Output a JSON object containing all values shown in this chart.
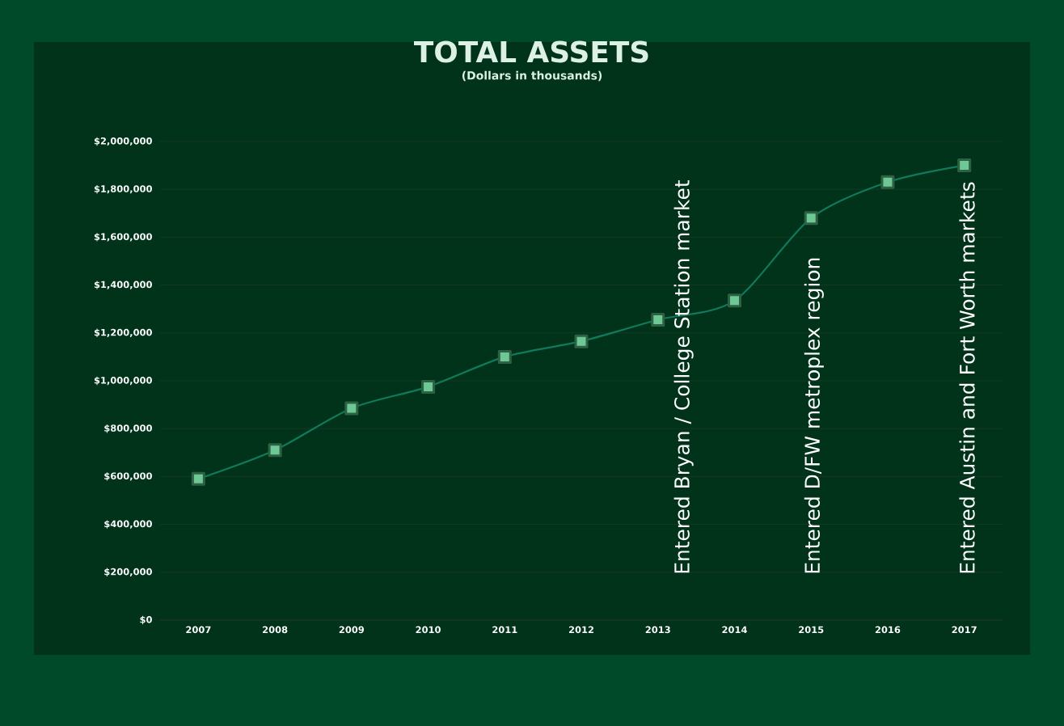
{
  "chart_data": {
    "type": "line",
    "title": "TOTAL ASSETS",
    "subtitle": "(Dollars in thousands)",
    "categories": [
      "2007",
      "2008",
      "2009",
      "2010",
      "2011",
      "2012",
      "2013",
      "2014",
      "2015",
      "2016",
      "2017"
    ],
    "series": [
      {
        "color": "#0f7a5c",
        "values": [
          590000,
          710000,
          885000,
          975000,
          1100000,
          1165000,
          1255000,
          1335000,
          1680000,
          1830000,
          1900000
        ]
      }
    ],
    "ylim": [
      0,
      2000000
    ],
    "yticks": [
      {
        "value": 0,
        "label": "$0"
      },
      {
        "value": 200000,
        "label": "$200,000"
      },
      {
        "value": 400000,
        "label": "$400,000"
      },
      {
        "value": 600000,
        "label": "$600,000"
      },
      {
        "value": 800000,
        "label": "$800,000"
      },
      {
        "value": 1000000,
        "label": "$1,000,000"
      },
      {
        "value": 1200000,
        "label": "$1,200,000"
      },
      {
        "value": 1400000,
        "label": "$1,400,000"
      },
      {
        "value": 1600000,
        "label": "$1,600,000"
      },
      {
        "value": 1800000,
        "label": "$1,800,000"
      },
      {
        "value": 2000000,
        "label": "$2,000,000"
      }
    ],
    "grid": "y",
    "marker": "square",
    "line_style": "solid",
    "annotations": [
      "Entered Bryan / College  Station market",
      "Entered D/FW metroplex  region",
      "Entered Austin and Fort Worth markets"
    ]
  }
}
